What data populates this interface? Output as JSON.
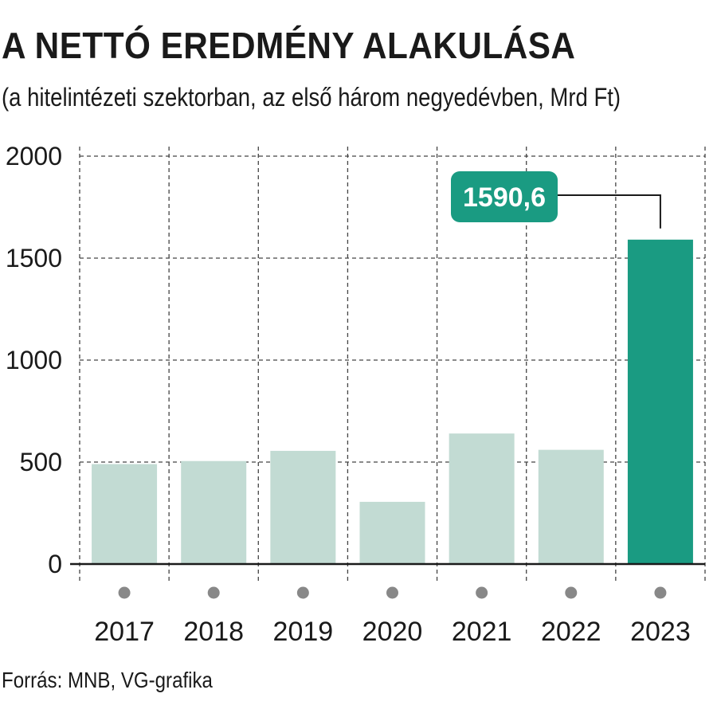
{
  "title": "A NETTÓ EREDMÉNY ALAKULÁSA",
  "subtitle": "(a hitelintézeti szektorban, az első három negyedévben, Mrd Ft)",
  "source": "Forrás: MNB, VG-grafika",
  "colors": {
    "bar_default": "#c2dbd3",
    "bar_highlight": "#1a9b82",
    "callout_bg": "#1a9b82",
    "grid": "#444444",
    "dot": "#888888"
  },
  "chart_data": {
    "type": "bar",
    "categories": [
      "2017",
      "2018",
      "2019",
      "2020",
      "2021",
      "2022",
      "2023"
    ],
    "values": [
      490,
      505,
      555,
      305,
      640,
      560,
      1590.6
    ],
    "highlight_index": 6,
    "callout_label": "1590,6",
    "ylim": [
      0,
      2000
    ],
    "yticks": [
      0,
      500,
      1000,
      1500,
      2000
    ],
    "ytick_labels": [
      "0",
      "500",
      "1000",
      "1500",
      "2000"
    ],
    "grid": true,
    "grid_style": "dashed"
  }
}
